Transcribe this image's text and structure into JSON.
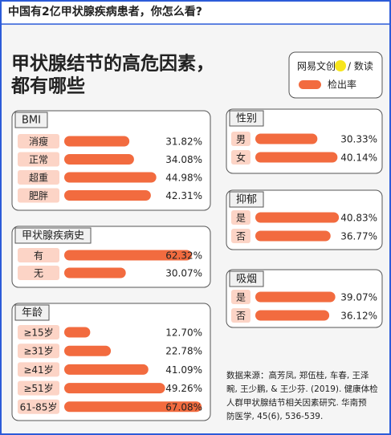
{
  "header": "中国有2亿甲状腺疾病患者，你怎么看?",
  "title": [
    "甲状腺结节的高危因素，",
    "都有哪些"
  ],
  "legend": {
    "brand": "网易文创",
    "sub": "/ 数读",
    "label": "检出率"
  },
  "chart_data": [
    {
      "type": "bar",
      "title": "BMI",
      "categories": [
        "消瘦",
        "正常",
        "超重",
        "肥胖"
      ],
      "values": [
        31.82,
        34.08,
        44.98,
        42.31
      ],
      "value_labels": [
        "31.82%",
        "34.08%",
        "44.98%",
        "42.31%"
      ],
      "color": "#f26b3f"
    },
    {
      "type": "bar",
      "title": "甲状腺疾病史",
      "categories": [
        "有",
        "无"
      ],
      "values": [
        62.32,
        30.07
      ],
      "value_labels": [
        "62.32%",
        "30.07%"
      ],
      "color": "#f26b3f"
    },
    {
      "type": "bar",
      "title": "年龄",
      "categories": [
        "≥15岁",
        "≥31岁",
        "≥41岁",
        "≥51岁",
        "61-85岁"
      ],
      "values": [
        12.7,
        22.78,
        41.09,
        49.26,
        67.08
      ],
      "value_labels": [
        "12.70%",
        "22.78%",
        "41.09%",
        "49.26%",
        "67.08%"
      ],
      "color": "#f26b3f"
    },
    {
      "type": "bar",
      "title": "性别",
      "categories": [
        "男",
        "女"
      ],
      "values": [
        30.33,
        40.14
      ],
      "value_labels": [
        "30.33%",
        "40.14%"
      ],
      "color": "#f26b3f"
    },
    {
      "type": "bar",
      "title": "抑郁",
      "categories": [
        "是",
        "否"
      ],
      "values": [
        40.83,
        36.77
      ],
      "value_labels": [
        "40.83%",
        "36.77%"
      ],
      "color": "#f26b3f"
    },
    {
      "type": "bar",
      "title": "吸烟",
      "categories": [
        "是",
        "否"
      ],
      "values": [
        39.07,
        36.12
      ],
      "value_labels": [
        "39.07%",
        "36.12%"
      ],
      "color": "#f26b3f"
    }
  ],
  "source": [
    "数据来源：高芳凤, 郑伍桂, 车春, 王泽",
    "畹, 王少鹏, & 王少芬. (2019). 健康体检",
    "人群甲状腺结节相关因素研究. 华南预",
    "防医学, 45(6), 536-539."
  ]
}
